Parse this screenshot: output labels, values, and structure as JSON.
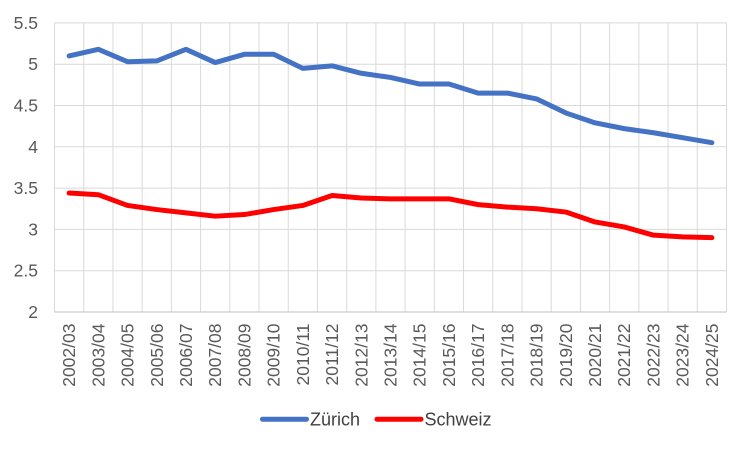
{
  "chart_data": {
    "type": "line",
    "title": "",
    "categories": [
      "2002/03",
      "2003/04",
      "2004/05",
      "2005/06",
      "2006/07",
      "2007/08",
      "2008/09",
      "2009/10",
      "2010/11",
      "2011/12",
      "2012/13",
      "2013/14",
      "2014/15",
      "2015/16",
      "2016/17",
      "2017/18",
      "2018/19",
      "2019/20",
      "2020/21",
      "2021/22",
      "2022/23",
      "2023/24",
      "2024/25"
    ],
    "series": [
      {
        "name": "Zürich",
        "color": "#4472C4",
        "values": [
          5.1,
          5.18,
          5.03,
          5.04,
          5.18,
          5.02,
          5.12,
          5.12,
          4.95,
          4.98,
          4.89,
          4.84,
          4.76,
          4.76,
          4.65,
          4.65,
          4.58,
          4.41,
          4.29,
          4.22,
          4.17,
          4.11,
          4.05
        ]
      },
      {
        "name": "Schweiz",
        "color": "#FF0000",
        "values": [
          3.44,
          3.42,
          3.29,
          3.24,
          3.2,
          3.16,
          3.18,
          3.24,
          3.29,
          3.41,
          3.38,
          3.37,
          3.37,
          3.37,
          3.3,
          3.27,
          3.25,
          3.21,
          3.09,
          3.03,
          2.93,
          2.91,
          2.9
        ]
      }
    ],
    "xlabel": "",
    "ylabel": "",
    "ylim": [
      2,
      5.5
    ],
    "ytick_labels": [
      "2",
      "2.5",
      "3",
      "3.5",
      "4",
      "4.5",
      "5",
      "5.5"
    ],
    "grid": "both",
    "legend_position": "bottom",
    "x_tick_rotation_degrees": 90
  },
  "colors": {
    "gridline": "#D9D9D9",
    "axis_line": "#BFBFBF",
    "tick_label_text": "#595959",
    "legend_text": "#404040",
    "background": "#FFFFFF"
  }
}
